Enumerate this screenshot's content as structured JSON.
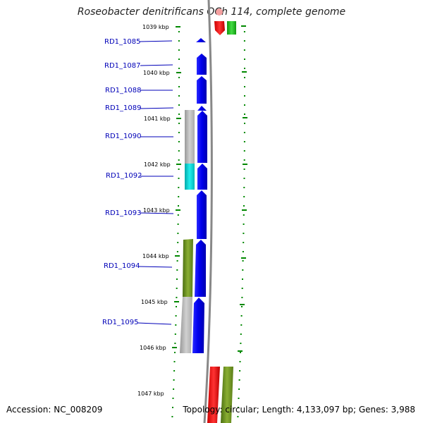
{
  "title": "Roseobacter denitrificans OCh 114, complete genome",
  "kbp_labels": [
    "1039 kbp",
    "1040 kbp",
    "1041 kbp",
    "1042 kbp",
    "1043 kbp",
    "1044 kbp",
    "1045 kbp",
    "1046 kbp",
    "1047 kbp"
  ],
  "gene_labels": [
    "RD1_1085",
    "RD1_1087",
    "RD1_1088",
    "RD1_1089",
    "RD1_1090",
    "RD1_1092",
    "RD1_1093",
    "RD1_1094",
    "RD1_1095"
  ],
  "colors": {
    "cds_forward": "#0000ee",
    "cds_red": "#ee0000",
    "cds_green": "#22bb22",
    "cds_grey": "#b8b8b8",
    "cds_cyan": "#00cccc",
    "cds_olive": "#6b8e23",
    "tick_green": "#008800",
    "backbone": "#888888",
    "label_blue": "#0000b8"
  },
  "footer": {
    "accession": "Accession: NC_008209",
    "summary": "Topology: circular; Length: 4,133,097 bp; Genes: 3,988"
  }
}
